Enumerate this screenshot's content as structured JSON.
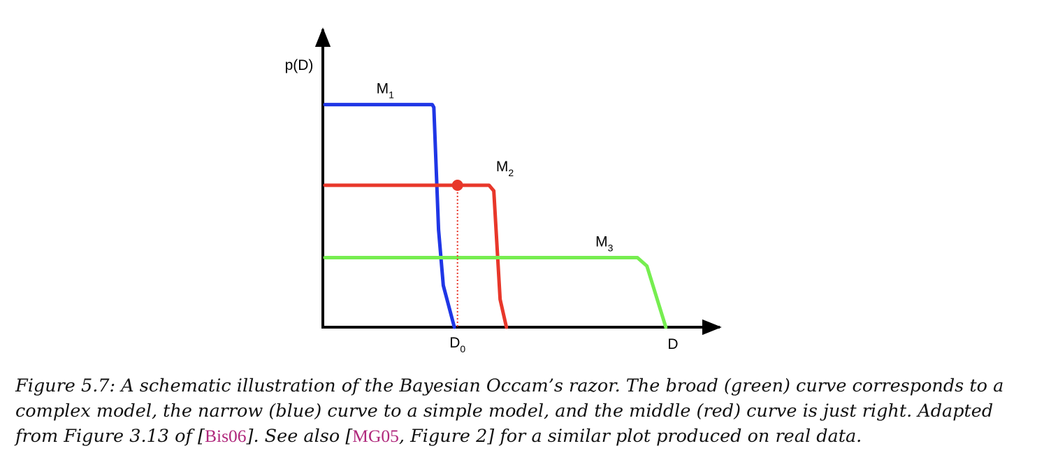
{
  "chart_data": {
    "type": "line",
    "ylabel": "p(D)",
    "xlabel": "D",
    "marker_label": {
      "main": "D",
      "sub": "0"
    },
    "marker_x": 4.2,
    "xlim": [
      0,
      12
    ],
    "ylim": [
      0,
      1
    ],
    "grid": false,
    "series": [
      {
        "name": "M",
        "sub": "1",
        "color": "#1f36e6",
        "points": [
          [
            0,
            0.8
          ],
          [
            3.4,
            0.8
          ],
          [
            3.45,
            0.79
          ],
          [
            3.6,
            0.35
          ],
          [
            3.75,
            0.15
          ],
          [
            4.1,
            0.0
          ]
        ]
      },
      {
        "name": "M",
        "sub": "2",
        "color": "#e8372a",
        "points": [
          [
            0,
            0.51
          ],
          [
            5.2,
            0.51
          ],
          [
            5.35,
            0.49
          ],
          [
            5.55,
            0.1
          ],
          [
            5.75,
            0.0
          ]
        ]
      },
      {
        "name": "M",
        "sub": "3",
        "color": "#76ee50",
        "points": [
          [
            0,
            0.25
          ],
          [
            9.9,
            0.25
          ],
          [
            10.2,
            0.22
          ],
          [
            10.8,
            0.0
          ]
        ]
      }
    ],
    "highlight_point": {
      "x": 4.2,
      "y": 0.51,
      "color": "#e8372a"
    }
  },
  "caption": {
    "prefix": "Figure 5.7: A schematic illustration of the Bayesian Occam’s razor. The broad (green) curve corresponds to a complex model, the narrow (blue) curve to a simple model, and the middle (red) curve is just right. Adapted from Figure 3.13 of [",
    "cite1": "Bis06",
    "middle": "]. See also [",
    "cite2": "MG05",
    "suffix": ", Figure 2] for a similar plot produced on real data."
  }
}
